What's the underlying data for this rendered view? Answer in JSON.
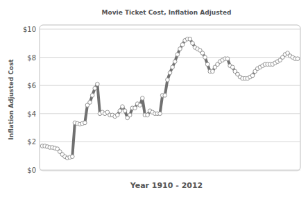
{
  "chart_data": {
    "type": "line",
    "title": "Movie Ticket Cost, Inflation Adjusted",
    "x_label": "Year 1910 - 2012",
    "y_label": "Inflation Adjusted Cost",
    "x": [
      1910,
      1911,
      1912,
      1913,
      1914,
      1915,
      1916,
      1917,
      1918,
      1919,
      1920,
      1921,
      1922,
      1923,
      1924,
      1925,
      1926,
      1927,
      1928,
      1929,
      1930,
      1931,
      1932,
      1933,
      1934,
      1935,
      1936,
      1937,
      1938,
      1939,
      1940,
      1941,
      1942,
      1943,
      1944,
      1945,
      1946,
      1947,
      1948,
      1949,
      1950,
      1951,
      1952,
      1953,
      1954,
      1955,
      1956,
      1957,
      1958,
      1959,
      1960,
      1961,
      1962,
      1963,
      1964,
      1965,
      1966,
      1967,
      1968,
      1969,
      1970,
      1971,
      1972,
      1973,
      1974,
      1975,
      1976,
      1977,
      1978,
      1979,
      1980,
      1981,
      1982,
      1983,
      1984,
      1985,
      1986,
      1987,
      1988,
      1989,
      1990,
      1991,
      1992,
      1993,
      1994,
      1995,
      1996,
      1997,
      1998,
      1999,
      2000,
      2001,
      2002,
      2003,
      2004,
      2005,
      2006,
      2007,
      2008,
      2009,
      2010,
      2011,
      2012
    ],
    "values": [
      1.7,
      1.7,
      1.65,
      1.6,
      1.6,
      1.55,
      1.5,
      1.3,
      1.1,
      0.95,
      0.85,
      0.9,
      0.95,
      3.35,
      3.3,
      3.25,
      3.3,
      3.35,
      4.6,
      4.8,
      5.3,
      5.8,
      6.1,
      4.0,
      4.1,
      4.0,
      4.1,
      3.9,
      3.9,
      3.8,
      3.9,
      4.2,
      4.5,
      4.2,
      3.7,
      3.9,
      4.4,
      4.4,
      4.7,
      4.6,
      5.1,
      3.9,
      3.9,
      4.2,
      4.1,
      4.0,
      4.0,
      4.0,
      5.3,
      5.3,
      6.4,
      6.9,
      7.3,
      7.7,
      8.2,
      8.6,
      8.9,
      9.2,
      9.3,
      9.3,
      9.0,
      8.7,
      8.6,
      8.5,
      8.3,
      8.0,
      7.5,
      7.0,
      7.0,
      7.3,
      7.5,
      7.7,
      7.8,
      7.9,
      7.9,
      7.4,
      7.3,
      7.0,
      6.8,
      6.6,
      6.5,
      6.5,
      6.5,
      6.6,
      6.7,
      7.0,
      7.2,
      7.3,
      7.4,
      7.5,
      7.5,
      7.5,
      7.5,
      7.6,
      7.7,
      7.8,
      8.0,
      8.2,
      8.3,
      8.1,
      8.0,
      7.9,
      7.9
    ],
    "color": "#707070",
    "marker": "circle",
    "xlim": [
      1910,
      2012
    ],
    "ylim": [
      0,
      10
    ],
    "yticks": [
      {
        "value": 0,
        "label": "$0"
      },
      {
        "value": 2,
        "label": "$2"
      },
      {
        "value": 4,
        "label": "$4"
      },
      {
        "value": 6,
        "label": "$6"
      },
      {
        "value": 8,
        "label": "$8"
      },
      {
        "value": 10,
        "label": "$10"
      }
    ],
    "grid": true,
    "tick_labels": "y"
  }
}
